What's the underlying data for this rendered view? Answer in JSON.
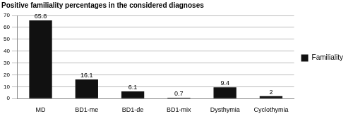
{
  "chart_data": {
    "type": "bar",
    "title": "Positive familiality percentages in the considered diagnoses",
    "categories": [
      "MD",
      "BD1-me",
      "BD1-de",
      "BD1-mix",
      "Dysthymia",
      "Cyclothymia"
    ],
    "series": [
      {
        "name": "Familiality",
        "color": "#111111",
        "values": [
          65.8,
          16.1,
          6.1,
          0.7,
          9.4,
          2
        ]
      }
    ],
    "ylim": [
      0,
      70
    ],
    "yticks": [
      0,
      10,
      20,
      30,
      40,
      50,
      60,
      70
    ],
    "grid": true,
    "legend": "right",
    "data_labels": true
  }
}
